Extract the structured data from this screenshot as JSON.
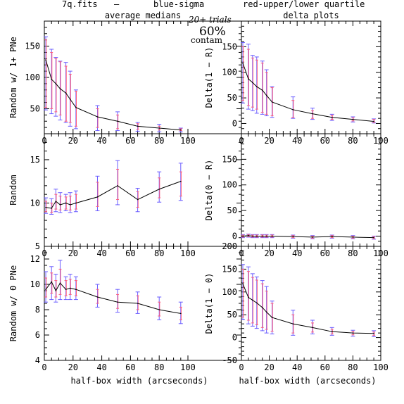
{
  "header": {
    "file": "7q.fits",
    "dash": "—",
    "blue_label": "blue-sigma",
    "red_label": "red-upper/lower quartile",
    "trials": "20+ trials",
    "contam_pct": "60%",
    "contam_word": "contam"
  },
  "colors": {
    "blue": "#6a5cff",
    "red": "#ff5a7a",
    "line": "#000000"
  },
  "chart_data": [
    {
      "id": "p1",
      "type": "line",
      "title": "average medians",
      "xlabel": "",
      "ylabel": "Random w/ 1+ PNe",
      "xlim": [
        0,
        100
      ],
      "ylim": [
        10,
        190
      ],
      "xticks": [
        0,
        20,
        40,
        60,
        80,
        100
      ],
      "yticks": [
        50,
        100,
        150
      ],
      "yminor": 10,
      "x": [
        1,
        5,
        8,
        11,
        15,
        18,
        22,
        37,
        51,
        65,
        80,
        95
      ],
      "y": [
        128,
        97,
        90,
        82,
        75,
        65,
        52,
        37,
        30,
        22,
        19,
        16
      ],
      "sigma": [
        [
          48,
          165
        ],
        [
          42,
          145
        ],
        [
          38,
          132
        ],
        [
          32,
          126
        ],
        [
          28,
          124
        ],
        [
          22,
          110
        ],
        [
          18,
          80
        ],
        [
          15,
          55
        ],
        [
          15,
          45
        ],
        [
          14,
          28
        ],
        [
          13,
          25
        ],
        [
          13,
          19
        ]
      ],
      "quartile": [
        [
          52,
          160
        ],
        [
          50,
          140
        ],
        [
          45,
          130
        ],
        [
          40,
          125
        ],
        [
          30,
          118
        ],
        [
          28,
          105
        ],
        [
          22,
          78
        ],
        [
          20,
          50
        ],
        [
          18,
          40
        ],
        [
          17,
          26
        ],
        [
          16,
          22
        ],
        [
          15,
          18
        ]
      ]
    },
    {
      "id": "p2",
      "type": "line",
      "title": "delta plots",
      "xlabel": "",
      "ylabel": "Delta(1 − R)",
      "xlim": [
        0,
        100
      ],
      "ylim": [
        -20,
        200
      ],
      "xticks": [
        0,
        20,
        40,
        60,
        80,
        100
      ],
      "yticks": [
        0,
        50,
        100,
        150
      ],
      "yminor": 10,
      "x": [
        1,
        5,
        8,
        11,
        15,
        18,
        22,
        37,
        51,
        65,
        80,
        95
      ],
      "y": [
        118,
        87,
        80,
        72,
        65,
        55,
        42,
        27,
        19,
        12,
        8,
        4
      ],
      "sigma": [
        [
          40,
          158
        ],
        [
          28,
          155
        ],
        [
          25,
          133
        ],
        [
          20,
          130
        ],
        [
          18,
          122
        ],
        [
          15,
          105
        ],
        [
          12,
          72
        ],
        [
          10,
          52
        ],
        [
          8,
          30
        ],
        [
          6,
          18
        ],
        [
          3,
          13
        ],
        [
          1,
          9
        ]
      ],
      "quartile": [
        [
          45,
          150
        ],
        [
          35,
          145
        ],
        [
          32,
          128
        ],
        [
          28,
          124
        ],
        [
          22,
          118
        ],
        [
          18,
          100
        ],
        [
          15,
          70
        ],
        [
          12,
          45
        ],
        [
          10,
          25
        ],
        [
          8,
          16
        ],
        [
          5,
          11
        ],
        [
          2,
          8
        ]
      ]
    },
    {
      "id": "p3",
      "type": "line",
      "title": "",
      "xlabel": "",
      "ylabel": "Random",
      "xlim": [
        0,
        100
      ],
      "ylim": [
        5,
        18
      ],
      "xticks": [
        0,
        20,
        40,
        60,
        80,
        100
      ],
      "yticks": [
        5,
        10,
        15
      ],
      "yminor": 1,
      "x": [
        1,
        5,
        8,
        11,
        15,
        18,
        22,
        37,
        51,
        65,
        80,
        95
      ],
      "y": [
        9.5,
        9.4,
        10.2,
        9.8,
        10.0,
        9.8,
        10.0,
        10.7,
        12.0,
        10.4,
        11.6,
        12.5
      ],
      "sigma": [
        [
          8.8,
          10.6
        ],
        [
          8.7,
          10.5
        ],
        [
          9.0,
          11.6
        ],
        [
          8.9,
          11.2
        ],
        [
          9.1,
          11.0
        ],
        [
          8.9,
          11.2
        ],
        [
          9.0,
          11.4
        ],
        [
          9.1,
          13.1
        ],
        [
          9.8,
          14.9
        ],
        [
          9.0,
          11.7
        ],
        [
          10.1,
          13.6
        ],
        [
          10.3,
          14.6
        ]
      ],
      "quartile": [
        [
          9.0,
          10.2
        ],
        [
          8.9,
          10.0
        ],
        [
          9.3,
          11.0
        ],
        [
          9.2,
          10.8
        ],
        [
          9.3,
          10.7
        ],
        [
          9.2,
          10.8
        ],
        [
          9.3,
          11.0
        ],
        [
          9.6,
          12.4
        ],
        [
          10.4,
          13.9
        ],
        [
          9.5,
          11.3
        ],
        [
          10.6,
          12.9
        ],
        [
          10.8,
          13.6
        ]
      ]
    },
    {
      "id": "p4",
      "type": "line",
      "title": "",
      "xlabel": "",
      "ylabel": "Delta(0 − R)",
      "xlim": [
        0,
        100
      ],
      "ylim": [
        -20,
        200
      ],
      "xticks": [
        0,
        20,
        40,
        60,
        80,
        100
      ],
      "yticks": [
        0,
        50,
        100,
        150
      ],
      "yminor": 10,
      "x": [
        1,
        5,
        8,
        11,
        15,
        18,
        22,
        37,
        51,
        65,
        80,
        95
      ],
      "y": [
        0,
        1,
        0,
        0,
        0,
        0,
        0,
        -1,
        -2,
        -1,
        -2,
        -3
      ],
      "sigma": [
        [
          -3,
          3
        ],
        [
          -2,
          4
        ],
        [
          -3,
          3
        ],
        [
          -3,
          3
        ],
        [
          -3,
          3
        ],
        [
          -3,
          3
        ],
        [
          -3,
          3
        ],
        [
          -4,
          2
        ],
        [
          -5,
          1
        ],
        [
          -4,
          2
        ],
        [
          -5,
          1
        ],
        [
          -6,
          0
        ]
      ],
      "quartile": [
        [
          -2,
          2
        ],
        [
          -1,
          3
        ],
        [
          -2,
          2
        ],
        [
          -2,
          2
        ],
        [
          -2,
          2
        ],
        [
          -2,
          2
        ],
        [
          -2,
          2
        ],
        [
          -3,
          1
        ],
        [
          -4,
          0
        ],
        [
          -3,
          1
        ],
        [
          -4,
          0
        ],
        [
          -5,
          -1
        ]
      ]
    },
    {
      "id": "p5",
      "type": "line",
      "title": "",
      "xlabel": "half-box width (arcseconds)",
      "ylabel": "Random w/ 0 PNe",
      "xlim": [
        0,
        100
      ],
      "ylim": [
        4,
        13
      ],
      "xticks": [
        0,
        20,
        40,
        60,
        80,
        100
      ],
      "yticks": [
        4,
        6,
        8,
        10,
        12
      ],
      "yminor": 0.5,
      "x": [
        1,
        5,
        8,
        11,
        15,
        18,
        22,
        37,
        51,
        65,
        80,
        95
      ],
      "y": [
        9.6,
        10.2,
        9.5,
        10.1,
        9.6,
        9.7,
        9.6,
        9.0,
        8.6,
        8.5,
        8.0,
        7.7
      ],
      "sigma": [
        [
          8.6,
          11.0
        ],
        [
          8.8,
          11.4
        ],
        [
          8.6,
          10.8
        ],
        [
          8.8,
          11.9
        ],
        [
          8.8,
          10.6
        ],
        [
          8.8,
          10.8
        ],
        [
          8.8,
          10.6
        ],
        [
          8.2,
          10.0
        ],
        [
          7.8,
          9.6
        ],
        [
          7.7,
          9.4
        ],
        [
          7.2,
          9.0
        ],
        [
          6.9,
          8.6
        ]
      ],
      "quartile": [
        [
          9.0,
          10.5
        ],
        [
          9.3,
          10.9
        ],
        [
          9.0,
          10.3
        ],
        [
          9.2,
          11.2
        ],
        [
          9.1,
          10.3
        ],
        [
          9.2,
          10.4
        ],
        [
          9.1,
          10.3
        ],
        [
          8.5,
          9.6
        ],
        [
          8.1,
          9.2
        ],
        [
          8.0,
          9.1
        ],
        [
          7.5,
          8.6
        ],
        [
          7.2,
          8.2
        ]
      ]
    },
    {
      "id": "p6",
      "type": "line",
      "title": "",
      "xlabel": "half-box width (arcseconds)",
      "ylabel": "Delta(1 − 0)",
      "xlim": [
        0,
        100
      ],
      "ylim": [
        -50,
        200
      ],
      "xticks": [
        0,
        20,
        40,
        60,
        80,
        100
      ],
      "yticks": [
        -50,
        0,
        50,
        100,
        150,
        200
      ],
      "yminor": 10,
      "x": [
        1,
        5,
        8,
        11,
        15,
        18,
        22,
        37,
        51,
        65,
        80,
        95
      ],
      "y": [
        118,
        88,
        82,
        76,
        66,
        56,
        44,
        30,
        22,
        13,
        10,
        9
      ],
      "sigma": [
        [
          40,
          160
        ],
        [
          30,
          155
        ],
        [
          25,
          140
        ],
        [
          20,
          133
        ],
        [
          15,
          125
        ],
        [
          10,
          112
        ],
        [
          8,
          80
        ],
        [
          5,
          60
        ],
        [
          8,
          38
        ],
        [
          5,
          22
        ],
        [
          3,
          16
        ],
        [
          2,
          15
        ]
      ],
      "quartile": [
        [
          45,
          150
        ],
        [
          38,
          145
        ],
        [
          32,
          132
        ],
        [
          28,
          126
        ],
        [
          22,
          118
        ],
        [
          18,
          102
        ],
        [
          14,
          75
        ],
        [
          10,
          50
        ],
        [
          12,
          32
        ],
        [
          8,
          18
        ],
        [
          6,
          14
        ],
        [
          5,
          12
        ]
      ]
    }
  ]
}
